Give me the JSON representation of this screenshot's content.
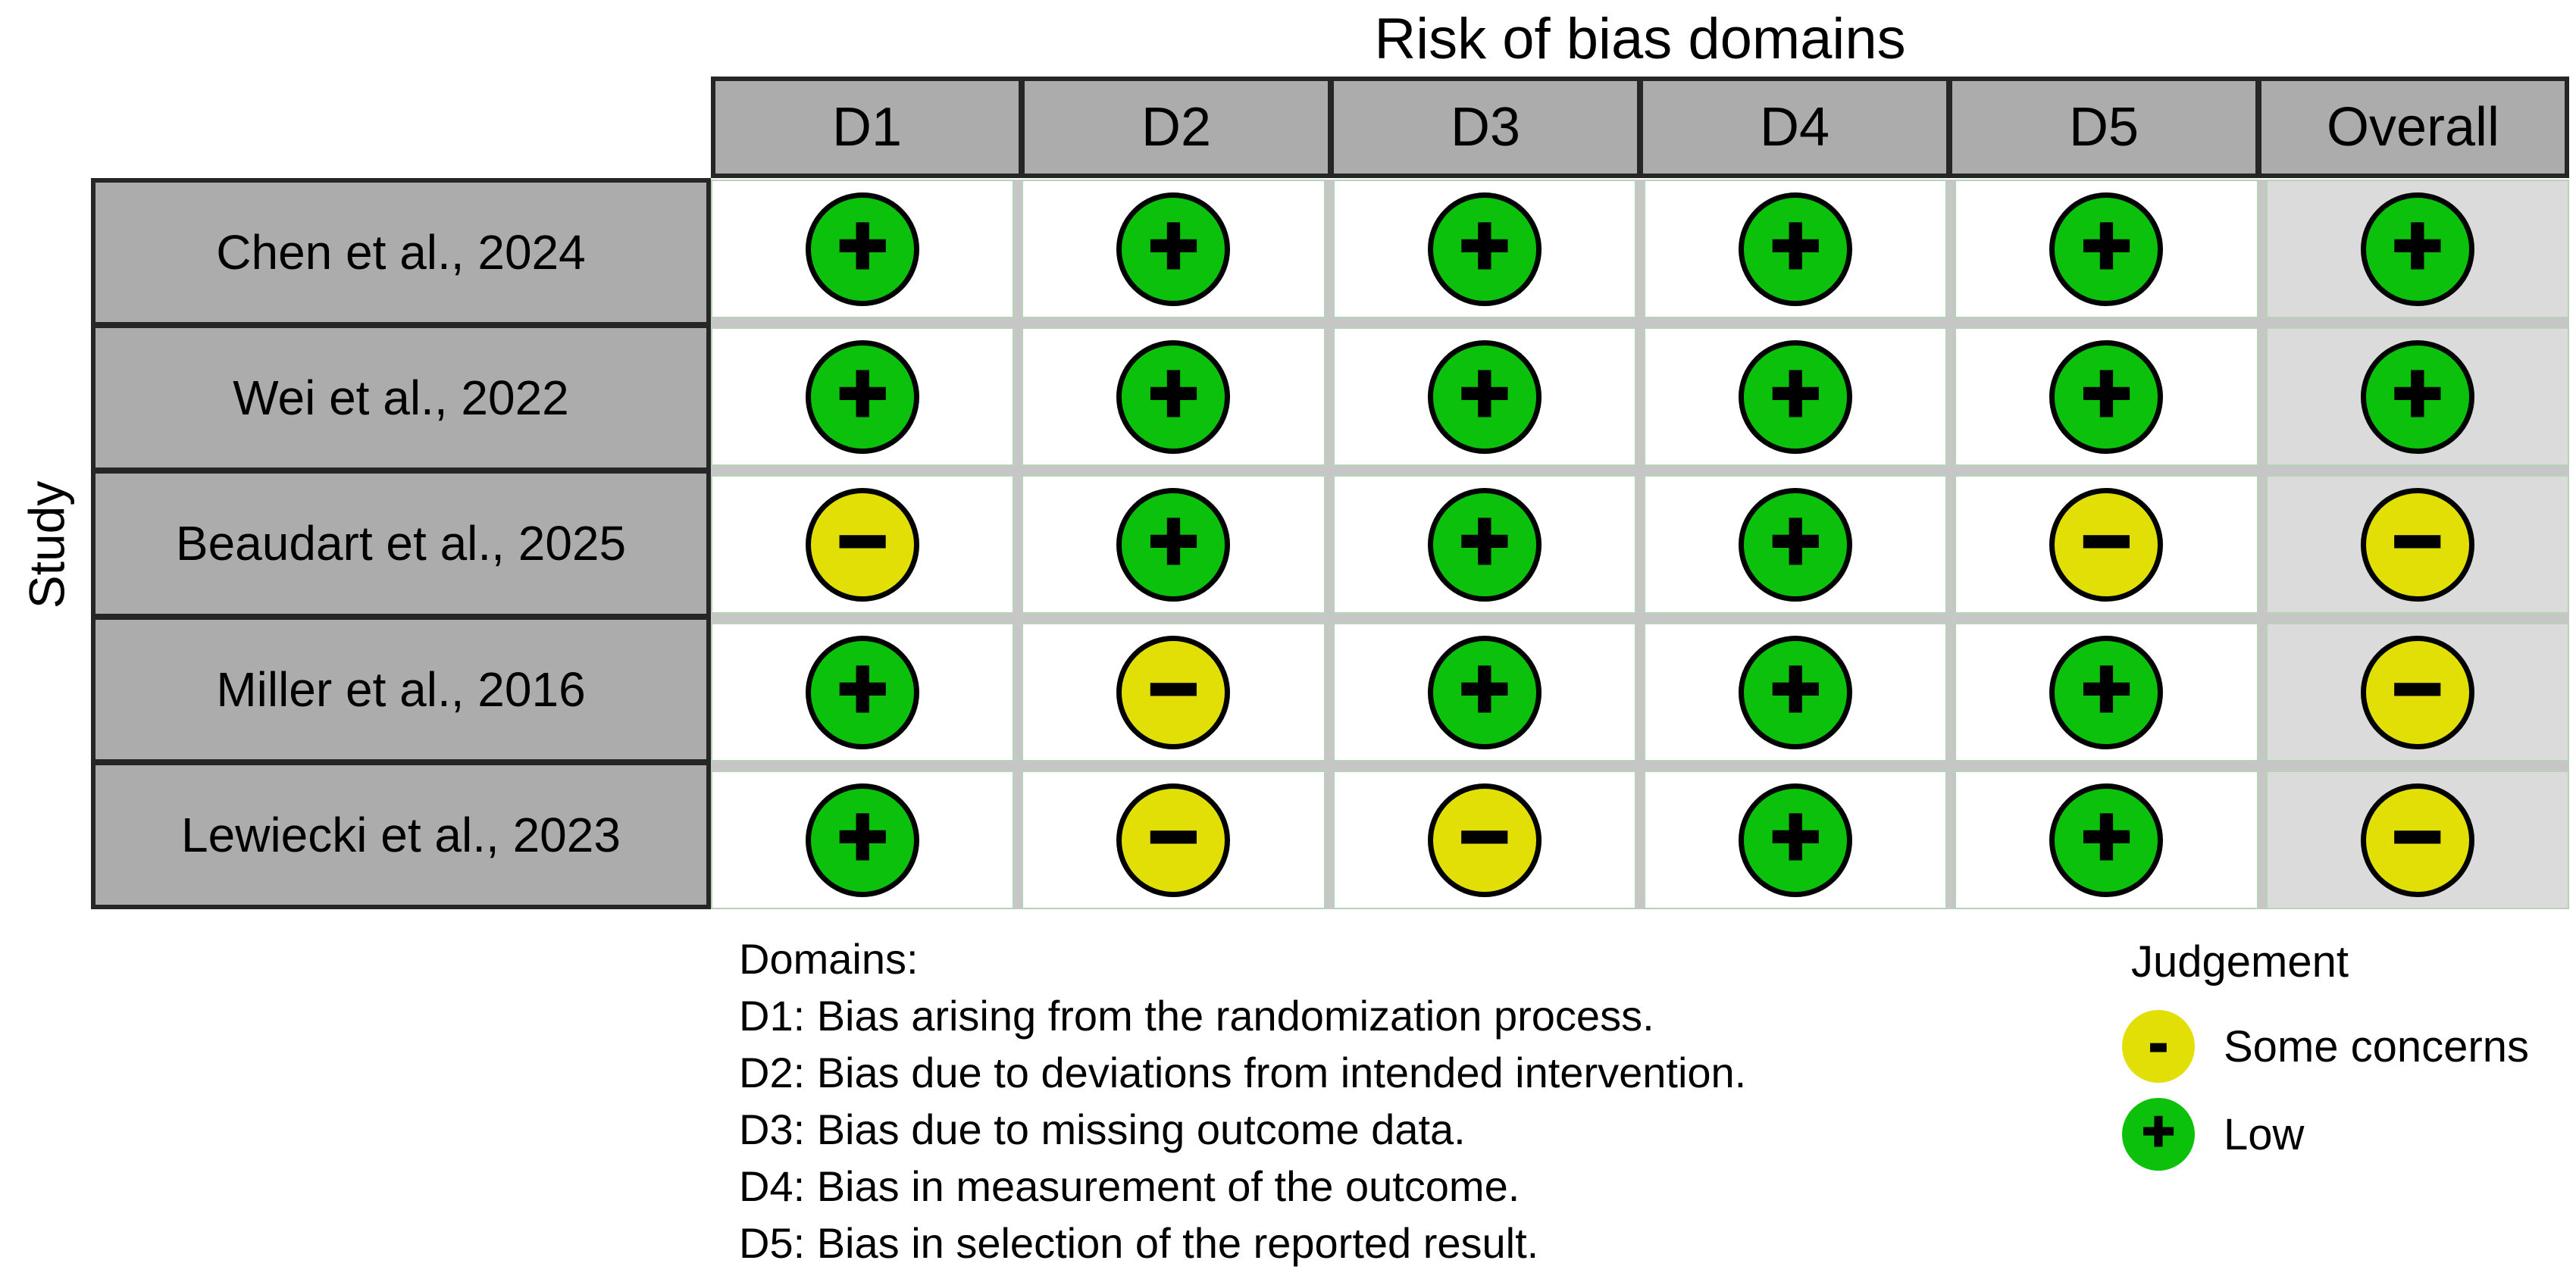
{
  "title": "Risk of bias domains",
  "axis": {
    "y_label": "Study"
  },
  "header": {
    "columns": [
      "D1",
      "D2",
      "D3",
      "D4",
      "D5",
      "Overall"
    ]
  },
  "rows": [
    {
      "study": "Chen et al., 2024",
      "cells": [
        {
          "judgement": "low",
          "symbol": "+"
        },
        {
          "judgement": "low",
          "symbol": "+"
        },
        {
          "judgement": "low",
          "symbol": "+"
        },
        {
          "judgement": "low",
          "symbol": "+"
        },
        {
          "judgement": "low",
          "symbol": "+"
        },
        {
          "judgement": "low",
          "symbol": "+"
        }
      ]
    },
    {
      "study": "Wei et al., 2022",
      "cells": [
        {
          "judgement": "low",
          "symbol": "+"
        },
        {
          "judgement": "low",
          "symbol": "+"
        },
        {
          "judgement": "low",
          "symbol": "+"
        },
        {
          "judgement": "low",
          "symbol": "+"
        },
        {
          "judgement": "low",
          "symbol": "+"
        },
        {
          "judgement": "low",
          "symbol": "+"
        }
      ]
    },
    {
      "study": "Beaudart et al., 2025",
      "cells": [
        {
          "judgement": "some-concerns",
          "symbol": "−"
        },
        {
          "judgement": "low",
          "symbol": "+"
        },
        {
          "judgement": "low",
          "symbol": "+"
        },
        {
          "judgement": "low",
          "symbol": "+"
        },
        {
          "judgement": "some-concerns",
          "symbol": "−"
        },
        {
          "judgement": "some-concerns",
          "symbol": "−"
        }
      ]
    },
    {
      "study": "Miller et al., 2016",
      "cells": [
        {
          "judgement": "low",
          "symbol": "+"
        },
        {
          "judgement": "some-concerns",
          "symbol": "−"
        },
        {
          "judgement": "low",
          "symbol": "+"
        },
        {
          "judgement": "low",
          "symbol": "+"
        },
        {
          "judgement": "low",
          "symbol": "+"
        },
        {
          "judgement": "some-concerns",
          "symbol": "−"
        }
      ]
    },
    {
      "study": "Lewiecki et al., 2023",
      "cells": [
        {
          "judgement": "low",
          "symbol": "+"
        },
        {
          "judgement": "some-concerns",
          "symbol": "−"
        },
        {
          "judgement": "some-concerns",
          "symbol": "−"
        },
        {
          "judgement": "low",
          "symbol": "+"
        },
        {
          "judgement": "low",
          "symbol": "+"
        },
        {
          "judgement": "some-concerns",
          "symbol": "−"
        }
      ]
    }
  ],
  "footnote": {
    "lines": [
      "Domains:",
      "D1: Bias arising from the randomization process.",
      "D2: Bias due to deviations from intended intervention.",
      "D3: Bias due to missing outcome data.",
      "D4: Bias in measurement of the outcome.",
      "D5: Bias in selection of the reported result."
    ]
  },
  "legend": {
    "title": "Judgement",
    "items": [
      {
        "label": "Some concerns",
        "judgement": "some-concerns",
        "symbol": "-"
      },
      {
        "label": "Low",
        "judgement": "low",
        "symbol": "+"
      }
    ]
  },
  "palette": {
    "low": "#0CC10C",
    "some-concerns": "#E2DF07"
  },
  "colors": {
    "header_fill": "#ACACAC",
    "study_fill": "#ACACAC",
    "overall_cell_fill": "#DBDBDB",
    "table_border": "#262626",
    "grid_gap": "#C6C6C6",
    "grid_line": "#B7D3B7",
    "low": "#0CC10C",
    "some_concerns": "#E2DF07"
  },
  "chart_data": {
    "type": "table",
    "title": "Risk of bias domains",
    "x_label": "",
    "y_label": "Study",
    "columns": [
      "D1",
      "D2",
      "D3",
      "D4",
      "D5",
      "Overall"
    ],
    "rows": [
      "Chen et al., 2024",
      "Wei et al., 2022",
      "Beaudart et al., 2025",
      "Miller et al., 2016",
      "Lewiecki et al., 2023"
    ],
    "values": [
      [
        "Low",
        "Low",
        "Low",
        "Low",
        "Low",
        "Low"
      ],
      [
        "Low",
        "Low",
        "Low",
        "Low",
        "Low",
        "Low"
      ],
      [
        "Some concerns",
        "Low",
        "Low",
        "Low",
        "Some concerns",
        "Some concerns"
      ],
      [
        "Low",
        "Some concerns",
        "Low",
        "Low",
        "Low",
        "Some concerns"
      ],
      [
        "Low",
        "Some concerns",
        "Some concerns",
        "Low",
        "Low",
        "Some concerns"
      ]
    ],
    "legend": {
      "title": "Judgement",
      "position": "bottom-right",
      "entries": [
        {
          "label": "Some concerns",
          "symbol": "-",
          "color": "#E2DF07"
        },
        {
          "label": "Low",
          "symbol": "+",
          "color": "#0CC10C"
        }
      ]
    },
    "footnotes": [
      "Domains:",
      "D1: Bias arising from the randomization process.",
      "D2: Bias due to deviations from intended intervention.",
      "D3: Bias due to missing outcome data.",
      "D4: Bias in measurement of the outcome.",
      "D5: Bias in selection of the reported result."
    ],
    "grid": "on"
  }
}
